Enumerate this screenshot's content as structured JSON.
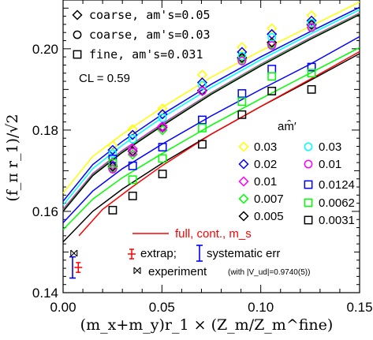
{
  "chart_data": {
    "type": "scatter",
    "xlabel": "(m_x+m_y)r_1 × (Z_m/Z_m^fine)",
    "ylabel": "(f_π r_1)/√2",
    "xlim": [
      0.0,
      0.15
    ],
    "ylim": [
      0.14,
      0.212
    ],
    "xticks": [
      0.0,
      0.05,
      0.1,
      0.15
    ],
    "yticks": [
      0.14,
      0.16,
      0.18,
      0.2
    ],
    "xtick_labels": [
      "0.00",
      "0.05",
      "0.10",
      "0.15"
    ],
    "ytick_labels": [
      "0.14",
      "0.16",
      "0.18",
      "0.20"
    ],
    "top_legend": {
      "items": [
        {
          "symbol": "diamond",
          "label": "coarse, am's=0.05"
        },
        {
          "symbol": "circle",
          "label": "coarse, am's=0.03"
        },
        {
          "symbol": "square",
          "label": "fine, am's=0.031"
        }
      ],
      "cl_text": "CL = 0.59"
    },
    "mass_legend": {
      "title": "am̂′",
      "col1": [
        {
          "label": "0.03",
          "symbol": "diamond",
          "color": "#ffff00"
        },
        {
          "label": "0.02",
          "symbol": "diamond",
          "color": "#0000ff"
        },
        {
          "label": "0.01",
          "symbol": "diamond",
          "color": "#ff00ff"
        },
        {
          "label": "0.007",
          "symbol": "diamond",
          "color": "#00ff00"
        },
        {
          "label": "0.005",
          "symbol": "diamond",
          "color": "#000000"
        }
      ],
      "col2": [
        {
          "label": "0.03",
          "symbol": "circle",
          "color": "#00ffff"
        },
        {
          "label": "0.01",
          "symbol": "circle",
          "color": "#ff00ff"
        },
        {
          "label": "0.0124",
          "symbol": "square",
          "color": "#0000ff"
        },
        {
          "label": "0.0062",
          "symbol": "square",
          "color": "#00ff00"
        },
        {
          "label": "0.0031",
          "symbol": "square",
          "color": "#000000"
        }
      ]
    },
    "bottom_legend": {
      "full_cont": "full, cont., m_s",
      "extrap": "extrap;",
      "systematic": "systematic err",
      "experiment": "experiment",
      "experiment_note": "(with |V_ud|=0.9740(5))"
    },
    "x_points": [
      0.0251,
      0.0352,
      0.0503,
      0.0704,
      0.0905,
      0.1056,
      0.1257
    ],
    "series": [
      {
        "name": "0.03",
        "ensemble": "coarse, am's=0.05",
        "symbol": "diamond",
        "color": "#ffff00",
        "points": [
          [
            0.0251,
            0.1762
          ],
          [
            0.0352,
            0.1802
          ],
          [
            0.0503,
            0.1853
          ],
          [
            0.0704,
            0.1936
          ],
          [
            0.0905,
            0.2004
          ],
          [
            0.1056,
            0.205
          ],
          [
            0.1257,
            0.2082
          ]
        ]
      },
      {
        "name": "0.02",
        "ensemble": "coarse, am's=0.05",
        "symbol": "diamond",
        "color": "#0000ff",
        "points": [
          [
            0.0251,
            0.1751
          ],
          [
            0.0352,
            0.1788
          ],
          [
            0.0503,
            0.1839
          ],
          [
            0.0704,
            0.1917
          ],
          [
            0.0905,
            0.1992
          ],
          [
            0.1056,
            0.2036
          ],
          [
            0.1257,
            0.2069
          ]
        ]
      },
      {
        "name": "0.01",
        "ensemble": "coarse, am's=0.05",
        "symbol": "diamond",
        "color": "#ff00ff",
        "points": [
          [
            0.0251,
            0.1714
          ],
          [
            0.0352,
            0.1754
          ],
          [
            0.0503,
            0.181
          ],
          [
            0.0704,
            0.1898
          ],
          [
            0.0905,
            0.1977
          ],
          [
            0.1056,
            0.2016
          ],
          [
            0.1257,
            0.2058
          ]
        ]
      },
      {
        "name": "0.007",
        "ensemble": "coarse, am's=0.05",
        "symbol": "diamond",
        "color": "#00ff00",
        "points": [
          [
            0.0251,
            0.1705
          ],
          [
            0.0352,
            0.174
          ],
          [
            0.0503,
            0.18
          ],
          [
            0.0704,
            0.1896
          ],
          [
            0.0905,
            0.1973
          ],
          [
            0.1056,
            0.201
          ],
          [
            0.1257,
            0.2053
          ]
        ]
      },
      {
        "name": "0.005",
        "ensemble": "coarse, am's=0.05",
        "symbol": "diamond",
        "color": "#000000",
        "points": [
          [
            0.0251,
            0.171
          ],
          [
            0.0352,
            0.1748
          ],
          [
            0.0503,
            0.1806
          ],
          [
            0.0704,
            0.1897
          ],
          [
            0.0905,
            0.1978
          ],
          [
            0.1056,
            0.2015
          ],
          [
            0.1257,
            0.206
          ]
        ]
      },
      {
        "name": "0.03",
        "ensemble": "coarse, am's=0.03",
        "symbol": "circle",
        "color": "#00ffff",
        "points": [
          [
            0.0251,
            0.1742
          ],
          [
            0.0352,
            0.1778
          ],
          [
            0.0503,
            0.183
          ],
          [
            0.0704,
            0.191
          ],
          [
            0.0905,
            0.1982
          ],
          [
            0.1056,
            0.2028
          ],
          [
            0.1257,
            0.2063
          ]
        ]
      },
      {
        "name": "0.01",
        "ensemble": "coarse, am's=0.03",
        "symbol": "circle",
        "color": "#ff00ff",
        "points": [
          [
            0.0251,
            0.1704
          ],
          [
            0.0352,
            0.1745
          ],
          [
            0.0503,
            0.1806
          ],
          [
            0.0704,
            0.1896
          ],
          [
            0.0905,
            0.197
          ],
          [
            0.1056,
            0.2008
          ],
          [
            0.1257,
            0.2052
          ]
        ]
      },
      {
        "name": "0.0124",
        "ensemble": "fine, am's=0.031",
        "symbol": "square",
        "color": "#0000ff",
        "points": [
          [
            0.0251,
            0.1729
          ],
          [
            0.0352,
            0.1712
          ],
          [
            0.0503,
            0.1758
          ],
          [
            0.0704,
            0.1825
          ],
          [
            0.0905,
            0.189
          ],
          [
            0.1056,
            0.195
          ],
          [
            0.1257,
            0.1955
          ]
        ]
      },
      {
        "name": "0.0062",
        "ensemble": "fine, am's=0.031",
        "symbol": "square",
        "color": "#00ff00",
        "points": [
          [
            0.0251,
            0.1718
          ],
          [
            0.0352,
            0.1678
          ],
          [
            0.0503,
            0.173
          ],
          [
            0.0704,
            0.1805
          ],
          [
            0.0905,
            0.187
          ],
          [
            0.1056,
            0.1932
          ],
          [
            0.1257,
            0.194
          ]
        ]
      },
      {
        "name": "0.0031",
        "ensemble": "fine, am's=0.031",
        "symbol": "square",
        "color": "#000000",
        "points": [
          [
            0.0251,
            0.1603
          ],
          [
            0.0352,
            0.1638
          ],
          [
            0.0503,
            0.1692
          ],
          [
            0.0704,
            0.1765
          ],
          [
            0.0905,
            0.1838
          ],
          [
            0.1056,
            0.1896
          ],
          [
            0.1257,
            0.19
          ]
        ]
      }
    ],
    "fit_curves": [
      {
        "color": "#ffff00",
        "points": [
          [
            0.0,
            0.1645
          ],
          [
            0.015,
            0.1735
          ],
          [
            0.03,
            0.179
          ],
          [
            0.05,
            0.1855
          ],
          [
            0.075,
            0.193
          ],
          [
            0.1,
            0.1995
          ],
          [
            0.125,
            0.2055
          ],
          [
            0.15,
            0.2115
          ]
        ]
      },
      {
        "color": "#0000ff",
        "points": [
          [
            0.0,
            0.1625
          ],
          [
            0.015,
            0.1715
          ],
          [
            0.03,
            0.1772
          ],
          [
            0.05,
            0.1838
          ],
          [
            0.075,
            0.1913
          ],
          [
            0.1,
            0.198
          ],
          [
            0.125,
            0.2042
          ],
          [
            0.15,
            0.2102
          ]
        ]
      },
      {
        "color": "#00ffff",
        "points": [
          [
            0.0,
            0.1615
          ],
          [
            0.015,
            0.1705
          ],
          [
            0.03,
            0.1763
          ],
          [
            0.05,
            0.183
          ],
          [
            0.075,
            0.1905
          ],
          [
            0.1,
            0.1973
          ],
          [
            0.125,
            0.2036
          ],
          [
            0.15,
            0.2096
          ]
        ]
      },
      {
        "color": "#ff00ff",
        "points": [
          [
            0.0,
            0.1605
          ],
          [
            0.015,
            0.1693
          ],
          [
            0.03,
            0.175
          ],
          [
            0.05,
            0.1815
          ],
          [
            0.075,
            0.1892
          ],
          [
            0.1,
            0.1962
          ],
          [
            0.125,
            0.2027
          ],
          [
            0.15,
            0.2088
          ]
        ]
      },
      {
        "color": "#00ff00",
        "points": [
          [
            0.0,
            0.1602
          ],
          [
            0.015,
            0.169
          ],
          [
            0.03,
            0.1747
          ],
          [
            0.05,
            0.1812
          ],
          [
            0.075,
            0.189
          ],
          [
            0.1,
            0.196
          ],
          [
            0.125,
            0.2025
          ],
          [
            0.15,
            0.2086
          ]
        ]
      },
      {
        "color": "#000000",
        "points": [
          [
            0.0,
            0.16
          ],
          [
            0.015,
            0.1688
          ],
          [
            0.03,
            0.1745
          ],
          [
            0.05,
            0.181
          ],
          [
            0.075,
            0.1888
          ],
          [
            0.1,
            0.1958
          ],
          [
            0.125,
            0.2023
          ],
          [
            0.15,
            0.2084
          ]
        ]
      },
      {
        "color": "#0000ff",
        "points": [
          [
            0.0,
            0.1572
          ],
          [
            0.015,
            0.165
          ],
          [
            0.03,
            0.1705
          ],
          [
            0.05,
            0.1765
          ],
          [
            0.075,
            0.1835
          ],
          [
            0.1,
            0.19
          ],
          [
            0.125,
            0.1962
          ],
          [
            0.15,
            0.203
          ]
        ]
      },
      {
        "color": "#00ff00",
        "points": [
          [
            0.0,
            0.1555
          ],
          [
            0.015,
            0.163
          ],
          [
            0.03,
            0.1683
          ],
          [
            0.05,
            0.1742
          ],
          [
            0.075,
            0.1812
          ],
          [
            0.1,
            0.1877
          ],
          [
            0.125,
            0.194
          ],
          [
            0.15,
            0.2003
          ]
        ]
      },
      {
        "color": "#000000",
        "points": [
          [
            0.0,
            0.1525
          ],
          [
            0.015,
            0.16
          ],
          [
            0.03,
            0.1655
          ],
          [
            0.05,
            0.1718
          ],
          [
            0.075,
            0.179
          ],
          [
            0.1,
            0.1858
          ],
          [
            0.125,
            0.1922
          ],
          [
            0.15,
            0.1988
          ]
        ]
      },
      {
        "color": "#ff0000",
        "points": [
          [
            0.008,
            0.154
          ],
          [
            0.02,
            0.1605
          ],
          [
            0.035,
            0.166
          ],
          [
            0.05,
            0.1712
          ],
          [
            0.075,
            0.179
          ],
          [
            0.1,
            0.1858
          ],
          [
            0.125,
            0.1925
          ],
          [
            0.15,
            0.1993
          ]
        ]
      }
    ],
    "extrapolation": {
      "x": 0.0077,
      "y": 0.1462,
      "err": 0.0012,
      "color": "#ff0000"
    },
    "systematic_error": {
      "x": 0.0048,
      "y_low": 0.1436,
      "y_high": 0.1488,
      "color": "#0000ff"
    },
    "experiment_point": {
      "x": 0.0055,
      "y": 0.1497,
      "err": 0.0003
    }
  }
}
